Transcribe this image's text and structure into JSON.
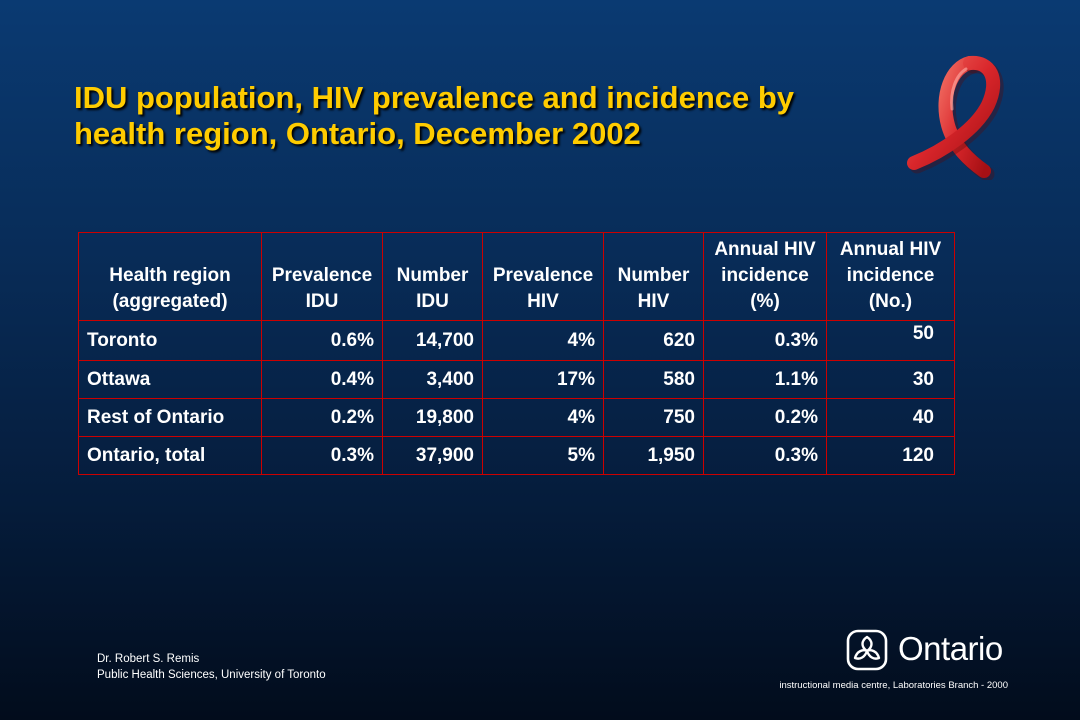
{
  "slide": {
    "title_line1": "IDU population, HIV prevalence and incidence by",
    "title_line2": "health region, Ontario, December 2002"
  },
  "table": {
    "headers": [
      [
        "Health region",
        "(aggregated)"
      ],
      [
        "Prevalence",
        "IDU"
      ],
      [
        "Number",
        "IDU"
      ],
      [
        "Prevalence",
        "HIV"
      ],
      [
        "Number",
        "HIV"
      ],
      [
        "Annual HIV",
        "incidence",
        "(%)"
      ],
      [
        "Annual HIV",
        "incidence",
        "(No.)"
      ]
    ],
    "rows": [
      [
        "Toronto",
        "0.6%",
        "14,700",
        "4%",
        "620",
        "0.3%",
        "50"
      ],
      [
        "Ottawa",
        "0.4%",
        "3,400",
        "17%",
        "580",
        "1.1%",
        "30"
      ],
      [
        "Rest of Ontario",
        "0.2%",
        "19,800",
        "4%",
        "750",
        "0.2%",
        "40"
      ],
      [
        "Ontario, total",
        "0.3%",
        "37,900",
        "5%",
        "1,950",
        "0.3%",
        "120"
      ]
    ]
  },
  "footer": {
    "author": "Dr. Robert S. Remis",
    "affiliation": "Public Health Sciences, University of Toronto",
    "logo_text": "Ontario",
    "credit": "instructional media centre, Laboratories Branch - 2000"
  },
  "icons": {
    "ribbon": "red-awareness-ribbon-icon",
    "logo": "ontario-trillium-logo-icon"
  },
  "colors": {
    "title": "#ffcc00",
    "table_border": "#cc0000",
    "ribbon": "#d9262b",
    "background_top": "#0a3a72",
    "background_bottom": "#020c1c"
  }
}
